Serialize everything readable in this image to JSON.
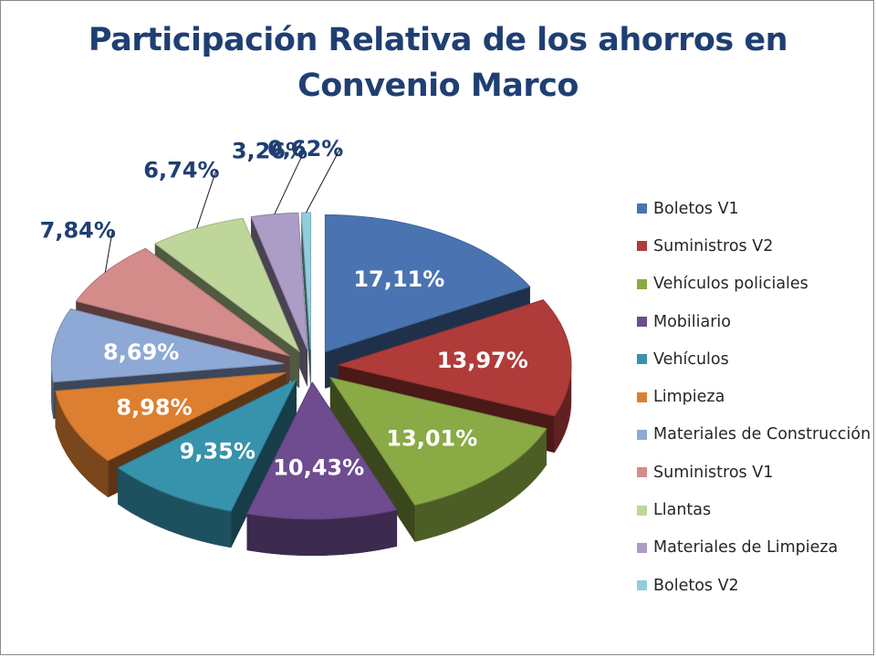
{
  "title_line1": "Participación Relativa de los ahorros en",
  "title_line2": "Convenio Marco",
  "chart_data": {
    "type": "pie",
    "title": "Participación Relativa de los ahorros en Convenio Marco",
    "style": "3d-exploded",
    "legend_position": "right",
    "label_format": "percent",
    "series": [
      {
        "name": "Boletos V1",
        "value": 17.11,
        "label": "17,11%",
        "color": "#4a74b1"
      },
      {
        "name": "Suministros V2",
        "value": 13.97,
        "label": "13,97%",
        "color": "#b03c3a"
      },
      {
        "name": "Vehículos policiales",
        "value": 13.01,
        "label": "13,01%",
        "color": "#8aaa45"
      },
      {
        "name": "Mobiliario",
        "value": 10.43,
        "label": "10,43%",
        "color": "#6e4c8f"
      },
      {
        "name": "Vehículos",
        "value": 9.35,
        "label": "9,35%",
        "color": "#3793ac"
      },
      {
        "name": "Limpieza",
        "value": 8.98,
        "label": "8,98%",
        "color": "#dd7f31"
      },
      {
        "name": "Materiales de Construcción",
        "value": 8.69,
        "label": "8,69%",
        "color": "#8ea9d5"
      },
      {
        "name": "Suministros V1",
        "value": 7.84,
        "label": "7,84%",
        "color": "#d48c8b"
      },
      {
        "name": "Llantas",
        "value": 6.74,
        "label": "6,74%",
        "color": "#bfd69b"
      },
      {
        "name": "Materiales de Limpieza",
        "value": 3.26,
        "label": "3,26%",
        "color": "#ab9dc6"
      },
      {
        "name": "Boletos V2",
        "value": 0.62,
        "label": "0,62%",
        "color": "#92cddc"
      }
    ]
  }
}
